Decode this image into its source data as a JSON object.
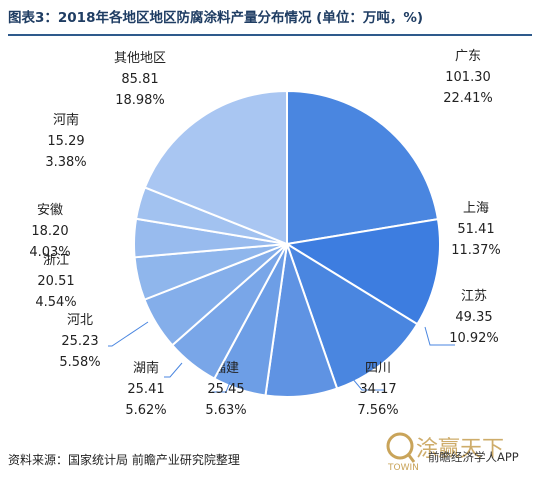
{
  "title": "图表3：2018年各地区地区防腐涂料产量分布情况 (单位：万吨，%)",
  "source": "资料来源：国家统计局 前瞻产业研究院整理",
  "watermark": {
    "brand_text": "涂赢天下",
    "app_text": "前瞻经济学人APP",
    "logo_text": "TOWIN"
  },
  "colors": {
    "slices": [
      "#4a86e0",
      "#3d7de0",
      "#4a86e0",
      "#5f93e3",
      "#6d9ee6",
      "#79a6e8",
      "#84aeea",
      "#8fb6ec",
      "#98bbee",
      "#a2c2f0",
      "#a9c6f2"
    ],
    "stroke": "#ffffff",
    "leader": "#4a86e0",
    "label": "#222222"
  },
  "chart_data": {
    "type": "pie",
    "title": "图表3：2018年各地区地区防腐涂料产量分布情况 (单位：万吨，%)",
    "unit": "万吨",
    "slices": [
      {
        "label": "广东",
        "value": 101.3,
        "value_text": "101.30",
        "percent": 22.41,
        "percent_text": "22.41%"
      },
      {
        "label": "上海",
        "value": 51.41,
        "value_text": "51.41",
        "percent": 11.37,
        "percent_text": "11.37%"
      },
      {
        "label": "江苏",
        "value": 49.35,
        "value_text": "49.35",
        "percent": 10.92,
        "percent_text": "10.92%"
      },
      {
        "label": "四川",
        "value": 34.17,
        "value_text": "34.17",
        "percent": 7.56,
        "percent_text": "7.56%"
      },
      {
        "label": "福建",
        "value": 25.45,
        "value_text": "25.45",
        "percent": 5.63,
        "percent_text": "5.63%"
      },
      {
        "label": "湖南",
        "value": 25.41,
        "value_text": "25.41",
        "percent": 5.62,
        "percent_text": "5.62%"
      },
      {
        "label": "河北",
        "value": 25.23,
        "value_text": "25.23",
        "percent": 5.58,
        "percent_text": "5.58%"
      },
      {
        "label": "浙江",
        "value": 20.51,
        "value_text": "20.51",
        "percent": 4.54,
        "percent_text": "4.54%"
      },
      {
        "label": "安徽",
        "value": 18.2,
        "value_text": "18.20",
        "percent": 4.03,
        "percent_text": "4.03%"
      },
      {
        "label": "河南",
        "value": 15.29,
        "value_text": "15.29",
        "percent": 3.38,
        "percent_text": "3.38%"
      },
      {
        "label": "其他地区",
        "value": 85.81,
        "value_text": "85.81",
        "percent": 18.98,
        "percent_text": "18.98%"
      }
    ]
  }
}
